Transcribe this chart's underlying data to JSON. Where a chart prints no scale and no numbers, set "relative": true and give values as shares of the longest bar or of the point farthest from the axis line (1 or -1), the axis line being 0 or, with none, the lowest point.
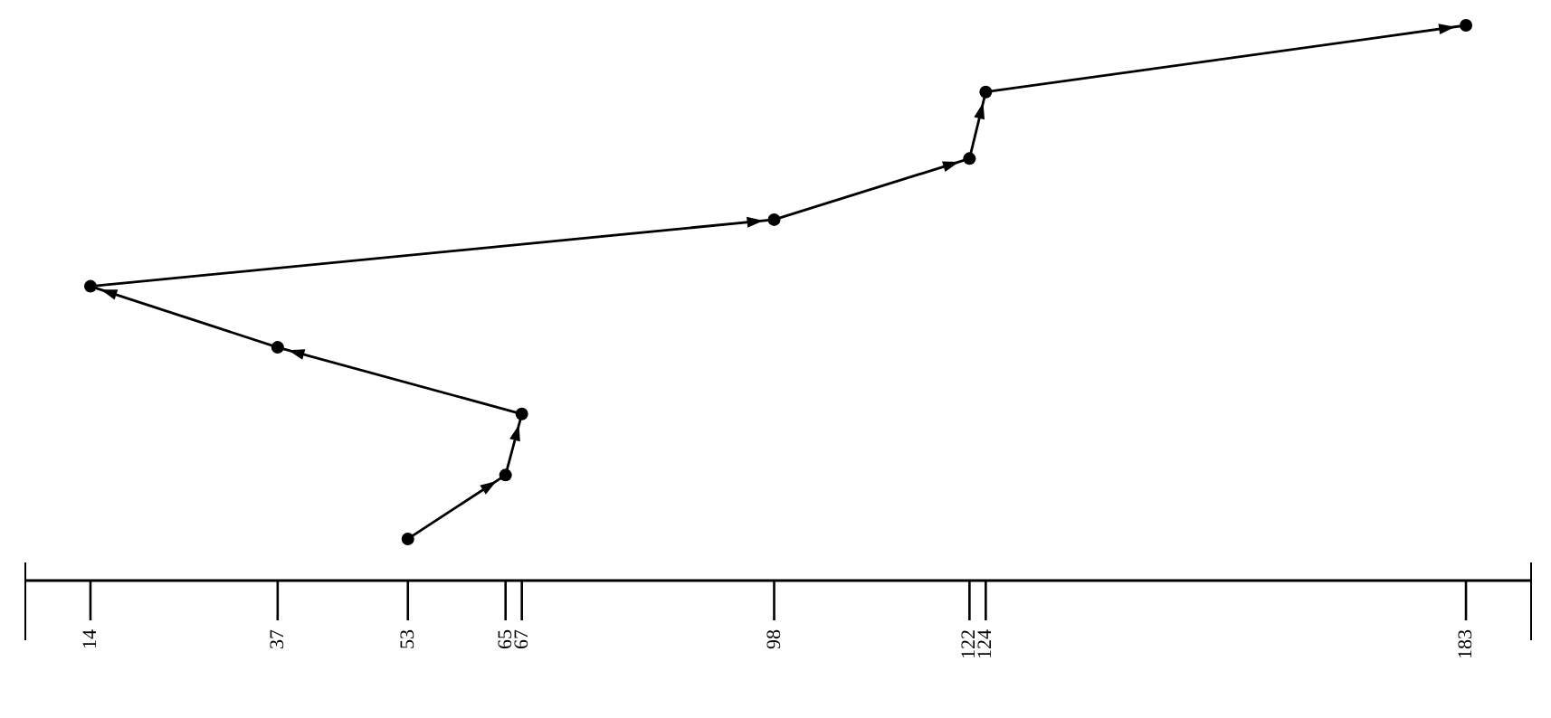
{
  "chart_data": {
    "type": "line",
    "relative": true,
    "x": [
      53,
      65,
      67,
      37,
      14,
      98,
      122,
      124,
      183
    ],
    "values": [
      0.075,
      0.19,
      0.3,
      0.42,
      0.53,
      0.65,
      0.76,
      0.88,
      1
    ],
    "color": "#000000",
    "marker": "circle",
    "line_style": "solid",
    "grid": false,
    "xlim": [
      6,
      191
    ],
    "xticks": [
      14,
      37,
      53,
      65,
      67,
      98,
      122,
      124,
      183
    ]
  }
}
